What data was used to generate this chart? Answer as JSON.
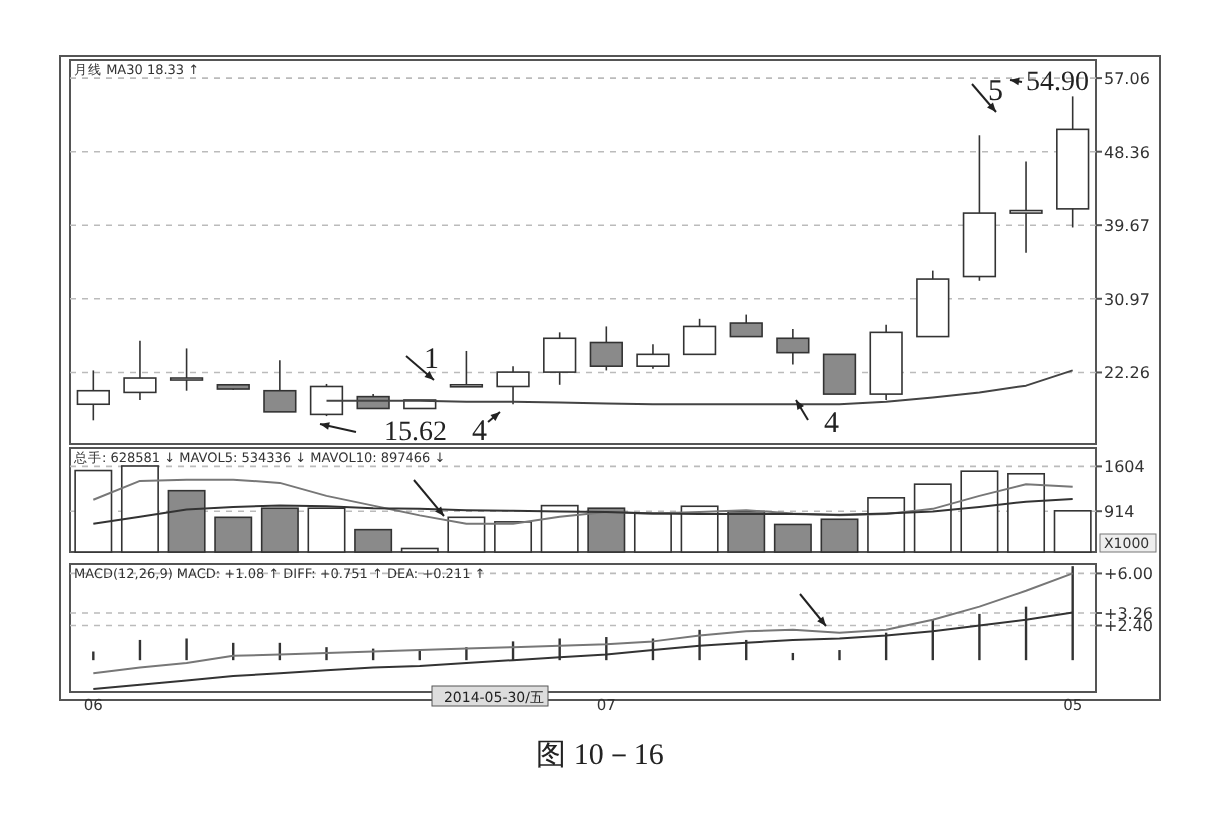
{
  "chart_data": [
    {
      "type": "candlestick",
      "title": "月线 MA30 18.33 ↑",
      "categories": [
        null,
        null,
        null,
        null,
        null,
        null,
        null,
        null,
        null,
        null,
        null,
        null,
        null,
        null,
        null,
        null,
        null,
        null,
        null,
        null,
        null,
        null
      ],
      "ohlc": [
        [
          18.5,
          22.5,
          16.6,
          20.1
        ],
        [
          19.9,
          26.0,
          19.0,
          21.6
        ],
        [
          21.5,
          25.1,
          20.1,
          21.6
        ],
        [
          20.8,
          20.9,
          20.2,
          20.3
        ],
        [
          20.1,
          23.7,
          17.6,
          17.6
        ],
        [
          17.3,
          20.9,
          17.1,
          20.6
        ],
        [
          19.4,
          19.7,
          18.0,
          18.0
        ],
        [
          18.0,
          19.0,
          18.0,
          19.0
        ],
        [
          20.7,
          24.8,
          20.6,
          20.8
        ],
        [
          20.6,
          23.0,
          18.5,
          22.3
        ],
        [
          22.3,
          27.0,
          20.8,
          26.3
        ],
        [
          25.8,
          27.7,
          22.5,
          23.0
        ],
        [
          23.0,
          25.6,
          22.7,
          24.4
        ],
        [
          24.4,
          28.6,
          24.4,
          27.7
        ],
        [
          28.1,
          29.1,
          26.5,
          26.5
        ],
        [
          26.3,
          27.4,
          23.2,
          24.6
        ],
        [
          24.4,
          24.4,
          19.7,
          19.7
        ],
        [
          19.7,
          27.9,
          19.0,
          27.0
        ],
        [
          26.5,
          34.3,
          26.5,
          33.3
        ],
        [
          33.6,
          50.3,
          33.1,
          41.1
        ],
        [
          41.1,
          47.2,
          36.4,
          41.4
        ],
        [
          41.6,
          54.9,
          39.4,
          51.0
        ]
      ],
      "colors": [
        "#ffffff",
        "#ffffff",
        "#ffffff",
        "#8a8a8a",
        "#8a8a8a",
        "#ffffff",
        "#8a8a8a",
        "#ffffff",
        "#ffffff",
        "#ffffff",
        "#ffffff",
        "#8a8a8a",
        "#ffffff",
        "#ffffff",
        "#8a8a8a",
        "#8a8a8a",
        "#8a8a8a",
        "#ffffff",
        "#ffffff",
        "#ffffff",
        "#ffffff",
        "#ffffff"
      ],
      "series": [
        {
          "type": "line",
          "color": "#444444",
          "values": [
            null,
            null,
            null,
            null,
            null,
            18.9,
            18.9,
            18.9,
            18.8,
            18.8,
            18.7,
            18.6,
            18.5,
            18.5,
            18.5,
            18.5,
            18.5,
            18.8,
            19.3,
            19.9,
            20.7,
            22.5
          ]
        }
      ],
      "ylim": [
        13.8,
        59.2
      ],
      "yticks": [
        22.26,
        30.97,
        39.67,
        48.36,
        57.06
      ],
      "grid": "y",
      "annotations": [
        "1",
        "4",
        "4",
        "5",
        "54.90",
        "15.62"
      ]
    },
    {
      "type": "bar",
      "title": "总手: 628581 ↓ MAVOL5: 534336 ↓ MAVOL10: 897466 ↓",
      "categories": [
        null,
        null,
        null,
        null,
        null,
        null,
        null,
        null,
        null,
        null,
        null,
        null,
        null,
        null,
        null,
        null,
        null,
        null,
        null,
        null,
        null,
        null
      ],
      "series": [
        {
          "values": [
            1540,
            1610,
            1230,
            820,
            960,
            960,
            630,
            340,
            820,
            750,
            1000,
            960,
            880,
            990,
            910,
            710,
            790,
            1120,
            1330,
            1530,
            1490,
            920
          ],
          "colors": [
            "#ffffff",
            "#ffffff",
            "#8a8a8a",
            "#8a8a8a",
            "#8a8a8a",
            "#ffffff",
            "#8a8a8a",
            "#ffffff",
            "#ffffff",
            "#ffffff",
            "#ffffff",
            "#8a8a8a",
            "#ffffff",
            "#ffffff",
            "#8a8a8a",
            "#8a8a8a",
            "#8a8a8a",
            "#ffffff",
            "#ffffff",
            "#ffffff",
            "#ffffff",
            "#ffffff"
          ]
        },
        {
          "type": "line",
          "color": "#777777",
          "values": [
            1090,
            1380,
            1400,
            1400,
            1350,
            1150,
            1000,
            850,
            720,
            720,
            830,
            900,
            880,
            900,
            930,
            880,
            850,
            870,
            950,
            1150,
            1330,
            1290
          ]
        },
        {
          "type": "line",
          "color": "#333333",
          "values": [
            720,
            830,
            940,
            980,
            1000,
            990,
            960,
            950,
            930,
            920,
            910,
            900,
            880,
            870,
            870,
            870,
            860,
            880,
            910,
            980,
            1060,
            1100
          ]
        }
      ],
      "ylim": [
        286,
        1887
      ],
      "yticks": [
        914,
        1604
      ],
      "ylabel": "X1000",
      "grid": "y"
    },
    {
      "type": "bar",
      "title": "MACD(12,26,9) MACD: +1.08 ↑ DIFF: +0.751 ↑ DEA: +0.211 ↑",
      "categories": [
        "06",
        null,
        null,
        null,
        null,
        null,
        null,
        null,
        null,
        null,
        null,
        "07",
        null,
        null,
        null,
        null,
        null,
        null,
        null,
        null,
        null,
        "05"
      ],
      "series": [
        {
          "color": "#333333",
          "values": [
            0.6,
            1.4,
            1.5,
            1.2,
            1.2,
            0.9,
            0.8,
            0.7,
            0.9,
            1.3,
            1.5,
            1.6,
            1.5,
            2.1,
            1.4,
            0.5,
            0.7,
            1.9,
            2.8,
            3.2,
            3.7,
            6.5
          ]
        },
        {
          "type": "line",
          "color": "#777777",
          "values": [
            -0.9,
            -0.5,
            -0.2,
            0.3,
            0.4,
            0.5,
            0.6,
            0.7,
            0.8,
            0.9,
            1.0,
            1.1,
            1.3,
            1.7,
            2.0,
            2.1,
            1.9,
            2.1,
            2.8,
            3.7,
            4.8,
            6.0
          ]
        },
        {
          "type": "line",
          "color": "#333333",
          "values": [
            -2.0,
            -1.7,
            -1.4,
            -1.1,
            -0.9,
            -0.7,
            -0.5,
            -0.4,
            -0.2,
            0,
            0.2,
            0.4,
            0.7,
            1.0,
            1.2,
            1.4,
            1.5,
            1.7,
            2.0,
            2.4,
            2.8,
            3.3
          ]
        }
      ],
      "ylim": [
        -2.2,
        6.65
      ],
      "yticks": [
        {
          "value": 2.4,
          "label": "+2.40"
        },
        {
          "value": 3.26,
          "label": "+3.26"
        },
        {
          "value": 6,
          "label": "+6.00"
        }
      ],
      "grid": "y",
      "annotations": [
        "2014-05-30/五",
        "图 10－16"
      ]
    }
  ]
}
